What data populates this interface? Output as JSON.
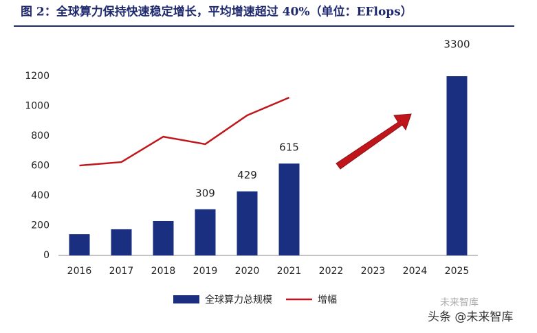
{
  "chart_data": {
    "type": "bar",
    "title": "图 2：全球算力保持快速稳定增长，平均增速超过 40%（单位：EFlops）",
    "categories": [
      "2016",
      "2017",
      "2018",
      "2019",
      "2020",
      "2021",
      "2022",
      "2023",
      "2024",
      "2025"
    ],
    "series": [
      {
        "name": "全球算力总规模",
        "type": "bar",
        "color": "#1b2f80",
        "values": [
          142,
          175,
          230,
          309,
          429,
          615,
          null,
          null,
          null,
          3300
        ],
        "value_labels": [
          null,
          null,
          null,
          "309",
          "429",
          "615",
          null,
          null,
          null,
          "3300"
        ]
      },
      {
        "name": "增幅",
        "type": "line",
        "color": "#c0161b",
        "values": [
          602,
          625,
          795,
          745,
          938,
          1057,
          null,
          null,
          null,
          null
        ]
      }
    ],
    "ylim": [
      0,
      1200
    ],
    "yticks": [
      0,
      200,
      400,
      600,
      800,
      1000,
      1200
    ],
    "grid": false,
    "legend": "bottom",
    "watermark": "头条 @未来智库",
    "watermark_top": "未来智库"
  }
}
